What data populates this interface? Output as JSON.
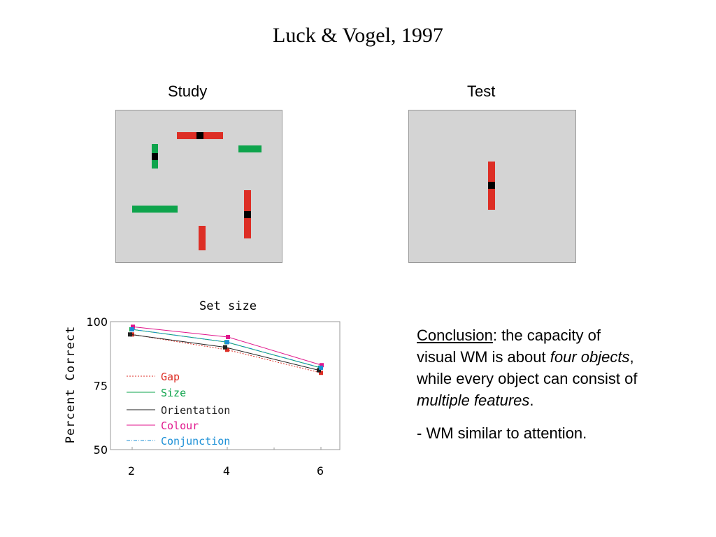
{
  "slide": {
    "title": "Luck & Vogel, 1997",
    "study_label": "Study",
    "test_label": "Test"
  },
  "study_panel": {
    "items": [
      {
        "color": "#dd2e25",
        "orientation": "horizontal",
        "gap": true
      },
      {
        "color": "#0ea44c",
        "orientation": "vertical",
        "gap": true
      },
      {
        "color": "#0ea44c",
        "orientation": "horizontal",
        "gap": false
      },
      {
        "color": "#0ea44c",
        "orientation": "horizontal",
        "gap": false
      },
      {
        "color": "#dd2e25",
        "orientation": "vertical",
        "gap": true
      },
      {
        "color": "#dd2e25",
        "orientation": "vertical",
        "gap": false
      }
    ]
  },
  "test_panel": {
    "items": [
      {
        "color": "#dd2e25",
        "orientation": "vertical",
        "gap": true
      }
    ]
  },
  "chart_data": {
    "type": "line",
    "title": "Set size",
    "xlabel": "",
    "ylabel": "Percent Correct",
    "x": [
      2,
      4,
      6
    ],
    "ylim": [
      50,
      100
    ],
    "yticks": [
      100,
      75,
      50
    ],
    "grid": false,
    "legend_position": "bottom-left",
    "series": [
      {
        "name": "Gap",
        "values": [
          95,
          89,
          80
        ],
        "color": "#dd2e25",
        "dash": "2,2"
      },
      {
        "name": "Size",
        "values": [
          97,
          92,
          82
        ],
        "color": "#0ea44c",
        "dash": ""
      },
      {
        "name": "Orientation",
        "values": [
          95,
          90,
          81
        ],
        "color": "#222222",
        "dash": ""
      },
      {
        "name": "Colour",
        "values": [
          98,
          94,
          83
        ],
        "color": "#e0168c",
        "dash": ""
      },
      {
        "name": "Conjunction",
        "values": [
          97,
          92,
          82
        ],
        "color": "#1b8fd6",
        "dash": "5,2,1,2"
      }
    ]
  },
  "conclusion": {
    "heading": "Conclusion",
    "text1": ": the capacity of visual WM is about ",
    "em1": "four objects",
    "text2": ", while every object can consist of ",
    "em2": "multiple features",
    "text3": ".",
    "bullet": "- WM similar to attention."
  }
}
